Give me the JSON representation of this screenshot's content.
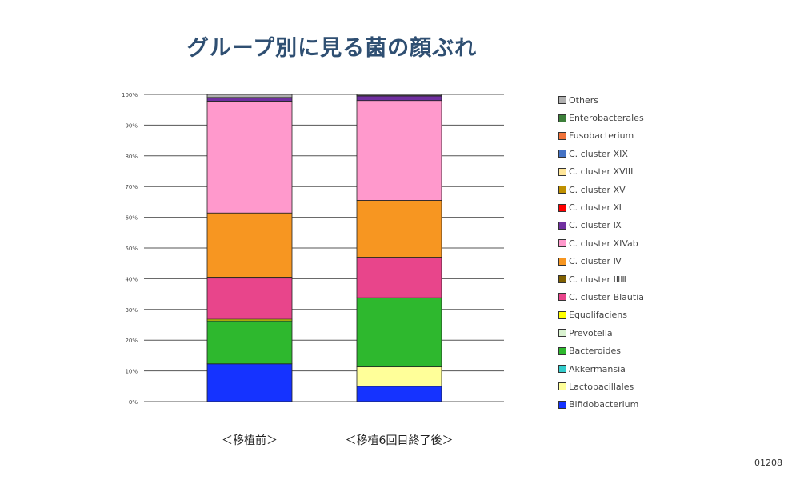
{
  "page": {
    "title": "グループ別に見る菌の顔ぶれ",
    "slide_number": "01208"
  },
  "colors": {
    "Others": "#b0b0b0",
    "Enterobacterales": "#3d7f3a",
    "Fusobacterium": "#f0733a",
    "C. cluster XIX": "#4472c4",
    "C. cluster XVIII": "#ffe699",
    "C. cluster XV": "#bf9000",
    "C. cluster Ⅺ": "#ff0000",
    "C. cluster Ⅸ": "#7030a0",
    "C. cluster XIVab": "#ff99cc",
    "C. cluster Ⅳ": "#f79621",
    "C. cluster ⅠⅡⅢ": "#806000",
    "C. cluster Blautia": "#e8458b",
    "Equolifaciens": "#ffff00",
    "Prevotella": "#d9f2d0",
    "Bacteroides": "#2eb82e",
    "Akkermansia": "#33cccc",
    "Lactobacillales": "#ffff99",
    "Bifidobacterium": "#1533ff"
  },
  "chart_data": {
    "type": "bar",
    "stacked": true,
    "categories": [
      "＜移植前＞",
      "＜移植6回目終了後＞"
    ],
    "ylim": [
      0,
      100
    ],
    "yticks": [
      0,
      10,
      20,
      30,
      40,
      50,
      60,
      70,
      80,
      90,
      100
    ],
    "ytick_labels": [
      "0%",
      "10%",
      "20%",
      "30%",
      "40%",
      "50%",
      "60%",
      "70%",
      "80%",
      "90%",
      "100%"
    ],
    "grid": true,
    "legend_position": "right",
    "series": [
      {
        "name": "Bifidobacterium",
        "values": [
          12.3,
          5.0
        ]
      },
      {
        "name": "Lactobacillales",
        "values": [
          0,
          6.3
        ]
      },
      {
        "name": "Akkermansia",
        "values": [
          0,
          0
        ]
      },
      {
        "name": "Bacteroides",
        "values": [
          14.0,
          22.5
        ]
      },
      {
        "name": "Prevotella",
        "values": [
          0,
          0
        ]
      },
      {
        "name": "Equolifaciens",
        "values": [
          0.5,
          0
        ]
      },
      {
        "name": "C. cluster Blautia",
        "values": [
          13.4,
          13.2
        ]
      },
      {
        "name": "C. cluster ⅠⅡⅢ",
        "values": [
          0.3,
          0
        ]
      },
      {
        "name": "C. cluster Ⅳ",
        "values": [
          20.9,
          18.5
        ]
      },
      {
        "name": "C. cluster XIVab",
        "values": [
          36.4,
          32.5
        ]
      },
      {
        "name": "C. cluster Ⅸ",
        "values": [
          1.0,
          1.5
        ]
      },
      {
        "name": "C. cluster Ⅺ",
        "values": [
          0,
          0
        ]
      },
      {
        "name": "C. cluster XV",
        "values": [
          0,
          0
        ]
      },
      {
        "name": "C. cluster XVIII",
        "values": [
          0,
          0
        ]
      },
      {
        "name": "C. cluster XIX",
        "values": [
          0,
          0
        ]
      },
      {
        "name": "Fusobacterium",
        "values": [
          0,
          0
        ]
      },
      {
        "name": "Enterobacterales",
        "values": [
          0.2,
          0.1
        ]
      },
      {
        "name": "Others",
        "values": [
          1.0,
          0.4
        ]
      }
    ],
    "legend_order": [
      "Others",
      "Enterobacterales",
      "Fusobacterium",
      "C. cluster XIX",
      "C. cluster XVIII",
      "C. cluster XV",
      "C. cluster Ⅺ",
      "C. cluster Ⅸ",
      "C. cluster XIVab",
      "C. cluster Ⅳ",
      "C. cluster ⅠⅡⅢ",
      "C. cluster Blautia",
      "Equolifaciens",
      "Prevotella",
      "Bacteroides",
      "Akkermansia",
      "Lactobacillales",
      "Bifidobacterium"
    ]
  }
}
